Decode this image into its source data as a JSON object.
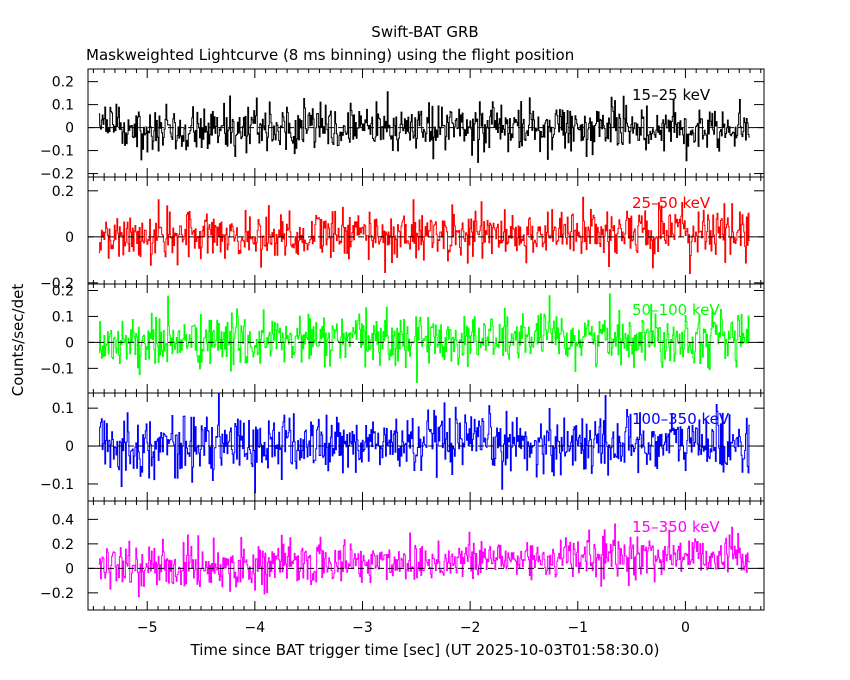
{
  "chart_data": {
    "type": "line",
    "title": "Swift-BAT GRB",
    "subtitle": "Maskweighted Lightcurve (8 ms binning) using the flight position",
    "xlabel": "Time since BAT trigger time [sec] (UT 2025-10-03T01:58:30.0)",
    "ylabel": "Counts/sec/det",
    "xlim": [
      -5.55,
      0.73
    ],
    "xticks": [
      -5,
      -4,
      -3,
      -2,
      -1,
      0
    ],
    "xtick_labels": [
      "−5",
      "−4",
      "−3",
      "−2",
      "−1",
      "0"
    ],
    "data_x_range": [
      -5.45,
      0.6
    ],
    "bin_width": 0.008,
    "panels": [
      {
        "band": "15–25 keV",
        "color": "#000000",
        "ylim": [
          -0.215,
          0.255
        ],
        "yticks": [
          0.2,
          0.1,
          0,
          -0.1,
          -0.2
        ],
        "ytick_labels": [
          "0.2",
          "0.1",
          "0",
          "−0.1",
          "−0.2"
        ],
        "noise_std": 0.05,
        "trend": [
          0.0,
          0.0
        ]
      },
      {
        "band": "25–50 keV",
        "color": "#ff0000",
        "ylim": [
          -0.205,
          0.26
        ],
        "yticks": [
          0.2,
          0,
          -0.2
        ],
        "ytick_labels": [
          "0.2",
          "0",
          "−0.2"
        ],
        "noise_std": 0.055,
        "trend": [
          0.0,
          0.02
        ]
      },
      {
        "band": "50–100 keV",
        "color": "#00ff00",
        "ylim": [
          -0.195,
          0.225
        ],
        "yticks": [
          0.2,
          0.1,
          0,
          -0.1
        ],
        "ytick_labels": [
          "0.2",
          "0.1",
          "0",
          "−0.1"
        ],
        "noise_std": 0.05,
        "trend": [
          0.0,
          0.025
        ]
      },
      {
        "band": "100–350 keV",
        "color": "#0000ff",
        "ylim": [
          -0.145,
          0.14
        ],
        "yticks": [
          0.1,
          0,
          -0.1
        ],
        "ytick_labels": [
          "0.1",
          "0",
          "−0.1"
        ],
        "noise_std": 0.04,
        "trend": [
          0.0,
          0.01
        ]
      },
      {
        "band": "15–350 keV",
        "color": "#ff00ff",
        "ylim": [
          -0.34,
          0.55
        ],
        "yticks": [
          0.4,
          0.2,
          0,
          -0.2
        ],
        "ytick_labels": [
          "0.4",
          "0.2",
          "0",
          "−0.2"
        ],
        "noise_std": 0.09,
        "trend": [
          0.0,
          0.12
        ]
      }
    ]
  }
}
